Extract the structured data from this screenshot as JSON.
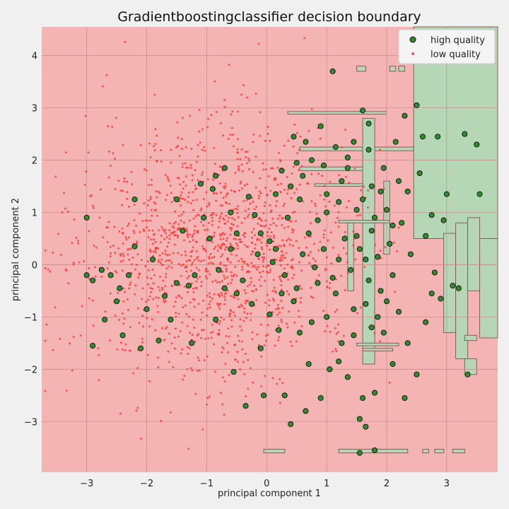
{
  "chart_data": {
    "type": "scatter",
    "title": "Gradientboostingclassifier decision boundary",
    "xlabel": "principal component 1",
    "ylabel": "principal component 2",
    "xlim": [
      -3.75,
      3.85
    ],
    "ylim": [
      -3.97,
      4.55
    ],
    "x_ticks": [
      -3,
      -2,
      -1,
      0,
      1,
      2,
      3
    ],
    "y_ticks": [
      -3,
      -2,
      -1,
      0,
      1,
      2,
      3,
      4
    ],
    "x_tick_labels": [
      "−3",
      "−2",
      "−1",
      "0",
      "1",
      "2",
      "3"
    ],
    "y_tick_labels": [
      "−3",
      "−2",
      "−1",
      "0",
      "1",
      "2",
      "3",
      "4"
    ],
    "grid": true,
    "legend_position": "top-right",
    "background_class": "low quality",
    "colors": {
      "low_region": "#f4b4b4",
      "high_region": "#b6d7b6",
      "high_point": "#2e8b2e",
      "low_point": "#ff3030",
      "grid": "#c98f8f",
      "figure_bg": "#f0f0f0"
    },
    "high_quality_regions": [
      {
        "x": [
          2.45,
          3.85
        ],
        "y": [
          0.5,
          4.55
        ]
      },
      {
        "x": [
          2.95,
          3.15
        ],
        "y": [
          -1.3,
          0.6
        ]
      },
      {
        "x": [
          3.15,
          3.35
        ],
        "y": [
          -1.8,
          0.8
        ]
      },
      {
        "x": [
          3.35,
          3.55
        ],
        "y": [
          -0.5,
          0.9
        ]
      },
      {
        "x": [
          3.55,
          3.85
        ],
        "y": [
          -1.4,
          0.5
        ]
      },
      {
        "x": [
          3.3,
          3.5
        ],
        "y": [
          -2.1,
          -1.8
        ]
      },
      {
        "x": [
          3.3,
          3.5
        ],
        "y": [
          -1.45,
          -1.35
        ]
      },
      {
        "x": [
          0.35,
          2.0
        ],
        "y": [
          2.88,
          2.93
        ]
      },
      {
        "x": [
          0.55,
          2.45
        ],
        "y": [
          2.18,
          2.25
        ]
      },
      {
        "x": [
          0.55,
          1.75
        ],
        "y": [
          1.8,
          1.87
        ]
      },
      {
        "x": [
          1.6,
          1.8
        ],
        "y": [
          -1.9,
          2.8
        ]
      },
      {
        "x": [
          1.95,
          2.05
        ],
        "y": [
          0.2,
          1.6
        ]
      },
      {
        "x": [
          1.35,
          1.45
        ],
        "y": [
          -0.5,
          0.8
        ]
      },
      {
        "x": [
          0.8,
          1.6
        ],
        "y": [
          1.5,
          1.55
        ]
      },
      {
        "x": [
          1.5,
          2.2
        ],
        "y": [
          -1.55,
          -1.5
        ]
      },
      {
        "x": [
          1.6,
          2.1
        ],
        "y": [
          -1.65,
          -1.6
        ]
      },
      {
        "x": [
          1.2,
          2.05
        ],
        "y": [
          0.8,
          0.85
        ]
      },
      {
        "x": [
          -0.05,
          0.3
        ],
        "y": [
          -3.6,
          -3.53
        ]
      },
      {
        "x": [
          1.2,
          2.35
        ],
        "y": [
          -3.6,
          -3.53
        ]
      },
      {
        "x": [
          2.6,
          2.7
        ],
        "y": [
          -3.6,
          -3.53
        ]
      },
      {
        "x": [
          2.8,
          2.95
        ],
        "y": [
          -3.6,
          -3.53
        ]
      },
      {
        "x": [
          3.1,
          3.3
        ],
        "y": [
          -3.6,
          -3.53
        ]
      },
      {
        "x": [
          1.5,
          1.65
        ],
        "y": [
          3.7,
          3.8
        ]
      },
      {
        "x": [
          2.05,
          2.15
        ],
        "y": [
          3.7,
          3.8
        ]
      },
      {
        "x": [
          2.2,
          2.3
        ],
        "y": [
          3.7,
          3.8
        ]
      }
    ],
    "series": [
      {
        "name": "high quality",
        "marker": "circle-outlined",
        "points": [
          [
            -3.0,
            0.9
          ],
          [
            -3.0,
            -0.2
          ],
          [
            -2.9,
            -0.3
          ],
          [
            -2.6,
            -0.2
          ],
          [
            -2.2,
            1.25
          ],
          [
            -2.2,
            0.35
          ],
          [
            -2.3,
            -0.2
          ],
          [
            -1.9,
            0.1
          ],
          [
            -1.7,
            -0.6
          ],
          [
            -1.5,
            1.25
          ],
          [
            -1.4,
            0.65
          ],
          [
            -1.3,
            -0.4
          ],
          [
            -1.1,
            1.55
          ],
          [
            -0.9,
            1.45
          ],
          [
            -0.85,
            1.7
          ],
          [
            -0.7,
            1.85
          ],
          [
            -0.6,
            1.0
          ],
          [
            -0.5,
            0.6
          ],
          [
            -2.5,
            -0.7
          ],
          [
            -2.75,
            -0.1
          ],
          [
            -2.4,
            -1.35
          ],
          [
            -2.1,
            -1.6
          ],
          [
            -1.8,
            -1.45
          ],
          [
            -1.6,
            -1.05
          ],
          [
            -1.25,
            -1.5
          ],
          [
            -1.2,
            -0.2
          ],
          [
            -1.05,
            0.9
          ],
          [
            -0.95,
            0.5
          ],
          [
            -0.8,
            -0.1
          ],
          [
            -0.7,
            -0.45
          ],
          [
            -0.3,
            1.3
          ],
          [
            -0.2,
            0.95
          ],
          [
            -0.1,
            0.6
          ],
          [
            0.05,
            0.45
          ],
          [
            0.15,
            1.35
          ],
          [
            0.25,
            1.8
          ],
          [
            0.35,
            0.9
          ],
          [
            0.45,
            2.45
          ],
          [
            0.5,
            1.95
          ],
          [
            0.55,
            1.25
          ],
          [
            0.65,
            2.35
          ],
          [
            0.75,
            2.0
          ],
          [
            0.7,
            0.6
          ],
          [
            0.9,
            2.65
          ],
          [
            0.95,
            1.9
          ],
          [
            1.0,
            1.0
          ],
          [
            1.1,
            3.7
          ],
          [
            1.15,
            2.25
          ],
          [
            1.2,
            1.2
          ],
          [
            1.3,
            0.5
          ],
          [
            1.35,
            1.85
          ],
          [
            1.45,
            2.35
          ],
          [
            1.5,
            1.05
          ],
          [
            1.55,
            0.3
          ],
          [
            1.6,
            2.95
          ],
          [
            1.7,
            2.7
          ],
          [
            1.75,
            1.5
          ],
          [
            1.8,
            0.9
          ],
          [
            1.85,
            0.15
          ],
          [
            1.9,
            -0.5
          ],
          [
            1.95,
            1.85
          ],
          [
            2.0,
            1.05
          ],
          [
            2.05,
            0.4
          ],
          [
            2.1,
            -0.2
          ],
          [
            2.15,
            2.35
          ],
          [
            2.2,
            1.6
          ],
          [
            2.25,
            0.8
          ],
          [
            2.3,
            2.85
          ],
          [
            2.35,
            1.4
          ],
          [
            2.4,
            0.2
          ],
          [
            2.5,
            3.05
          ],
          [
            2.55,
            1.75
          ],
          [
            2.6,
            2.45
          ],
          [
            2.65,
            0.55
          ],
          [
            2.75,
            0.95
          ],
          [
            2.8,
            -0.15
          ],
          [
            2.85,
            2.45
          ],
          [
            2.95,
            0.85
          ],
          [
            3.0,
            1.35
          ],
          [
            3.1,
            -0.4
          ],
          [
            3.2,
            -0.45
          ],
          [
            3.3,
            2.5
          ],
          [
            3.5,
            2.3
          ],
          [
            3.55,
            1.35
          ],
          [
            3.35,
            -2.1
          ],
          [
            0.3,
            -0.2
          ],
          [
            0.45,
            -0.7
          ],
          [
            0.55,
            -1.3
          ],
          [
            0.7,
            -1.9
          ],
          [
            0.85,
            -0.35
          ],
          [
            1.0,
            -1.0
          ],
          [
            1.05,
            -2.0
          ],
          [
            1.15,
            -0.55
          ],
          [
            1.25,
            -1.5
          ],
          [
            1.35,
            -2.15
          ],
          [
            1.45,
            -0.85
          ],
          [
            1.55,
            -2.95
          ],
          [
            1.6,
            -2.55
          ],
          [
            1.65,
            -3.1
          ],
          [
            1.8,
            -2.45
          ],
          [
            1.95,
            -1.3
          ],
          [
            2.1,
            -1.9
          ],
          [
            2.2,
            -0.9
          ],
          [
            2.3,
            -2.55
          ],
          [
            2.35,
            -1.5
          ],
          [
            2.5,
            -2.1
          ],
          [
            2.65,
            -1.1
          ],
          [
            2.75,
            -0.55
          ],
          [
            2.9,
            -0.65
          ],
          [
            1.8,
            -3.55
          ],
          [
            1.55,
            -3.6
          ],
          [
            0.65,
            -2.8
          ],
          [
            0.4,
            -3.05
          ],
          [
            0.3,
            -2.5
          ],
          [
            -0.05,
            -2.5
          ],
          [
            -0.35,
            -2.7
          ],
          [
            -0.55,
            -2.05
          ],
          [
            -0.1,
            -1.6
          ],
          [
            -0.25,
            -0.75
          ],
          [
            0.05,
            -0.95
          ],
          [
            0.2,
            -1.25
          ],
          [
            -0.5,
            -0.55
          ],
          [
            -0.85,
            -1.05
          ],
          [
            0.6,
            0.2
          ],
          [
            0.8,
            -0.05
          ],
          [
            0.95,
            0.3
          ],
          [
            1.1,
            -0.25
          ],
          [
            1.2,
            0.1
          ],
          [
            1.4,
            -0.1
          ],
          [
            1.5,
            0.55
          ],
          [
            1.7,
            -0.3
          ],
          [
            1.75,
            0.65
          ],
          [
            1.85,
            -1.0
          ],
          [
            2.0,
            -0.7
          ],
          [
            0.15,
            0.3
          ],
          [
            0.4,
            1.5
          ],
          [
            0.6,
            1.7
          ],
          [
            0.85,
            0.85
          ],
          [
            1.0,
            1.35
          ],
          [
            1.25,
            1.6
          ],
          [
            1.35,
            2.05
          ],
          [
            1.7,
            2.2
          ],
          [
            1.9,
            1.4
          ],
          [
            2.1,
            0.75
          ],
          [
            1.6,
            1.25
          ],
          [
            1.65,
            0.1
          ],
          [
            1.65,
            -0.75
          ],
          [
            1.75,
            -1.2
          ],
          [
            1.45,
            -1.35
          ],
          [
            1.2,
            -1.85
          ],
          [
            0.9,
            -2.55
          ],
          [
            0.75,
            -1.1
          ],
          [
            0.5,
            -0.45
          ],
          [
            0.25,
            -0.55
          ],
          [
            0.1,
            0.05
          ],
          [
            -0.15,
            0.2
          ],
          [
            -0.4,
            -0.3
          ],
          [
            -0.6,
            0.3
          ],
          [
            -1.5,
            -0.35
          ],
          [
            -2.0,
            -0.85
          ],
          [
            -2.7,
            -1.05
          ],
          [
            -2.9,
            -1.55
          ],
          [
            -2.45,
            -0.45
          ]
        ]
      },
      {
        "name": "low quality",
        "marker": "dot",
        "points_note": "",
        "generated": true,
        "center": [
          -0.9,
          0.25
        ],
        "spread": [
          1.15,
          1.2
        ],
        "count": 1400,
        "seed": 42
      }
    ]
  }
}
